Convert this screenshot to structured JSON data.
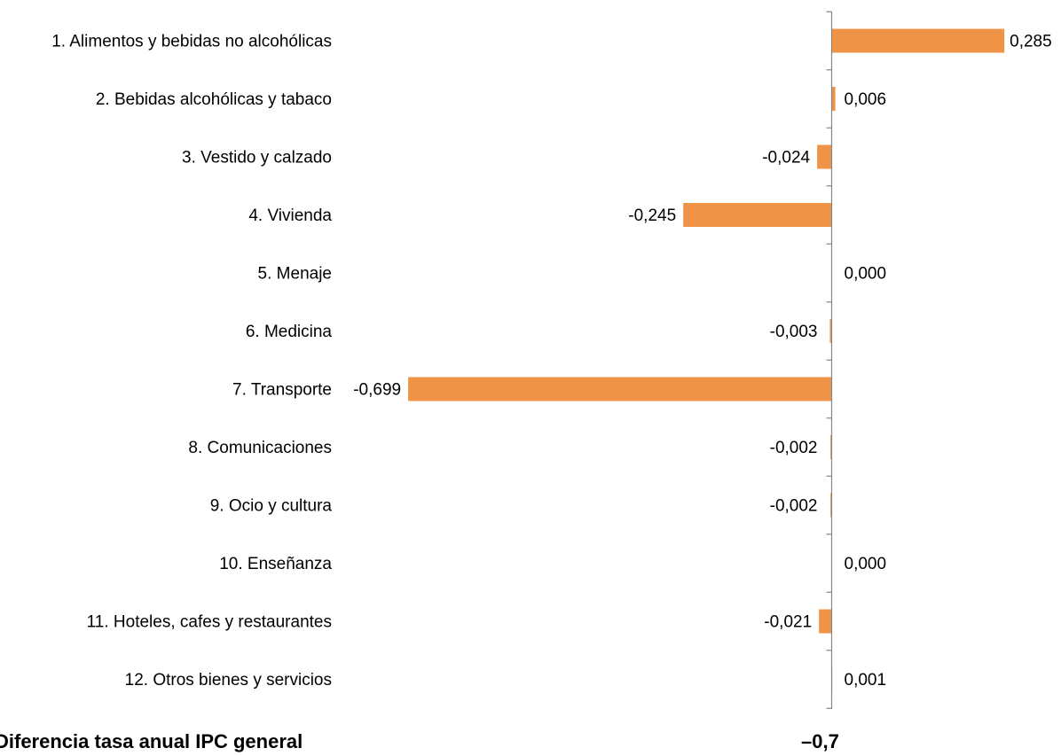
{
  "chart_data": {
    "type": "bar",
    "orientation": "horizontal",
    "categories": [
      "1. Alimentos y bebidas no alcohólicas",
      "2. Bebidas alcohólicas y tabaco",
      "3. Vestido y calzado",
      "4. Vivienda",
      "5. Menaje",
      "6. Medicina",
      "7. Transporte",
      "8. Comunicaciones",
      "9. Ocio y cultura",
      "10. Enseñanza",
      "11. Hoteles, cafes y restaurantes",
      "12. Otros bienes y servicios"
    ],
    "values": [
      0.285,
      0.006,
      -0.024,
      -0.245,
      0.0,
      -0.003,
      -0.699,
      -0.002,
      -0.002,
      0.0,
      -0.021,
      0.001
    ],
    "value_labels": [
      "0,285",
      "0,006",
      "-0,024",
      "-0,245",
      "0,000",
      "-0,003",
      "-0,699",
      "-0,002",
      "-0,002",
      "0,000",
      "-0,021",
      "0,001"
    ],
    "bar_color": "#ef9447",
    "axis_color": "#868686",
    "grid": false,
    "legend": "none"
  },
  "footer": {
    "label": "Diferencia tasa anual IPC general",
    "value": "–0,7"
  }
}
